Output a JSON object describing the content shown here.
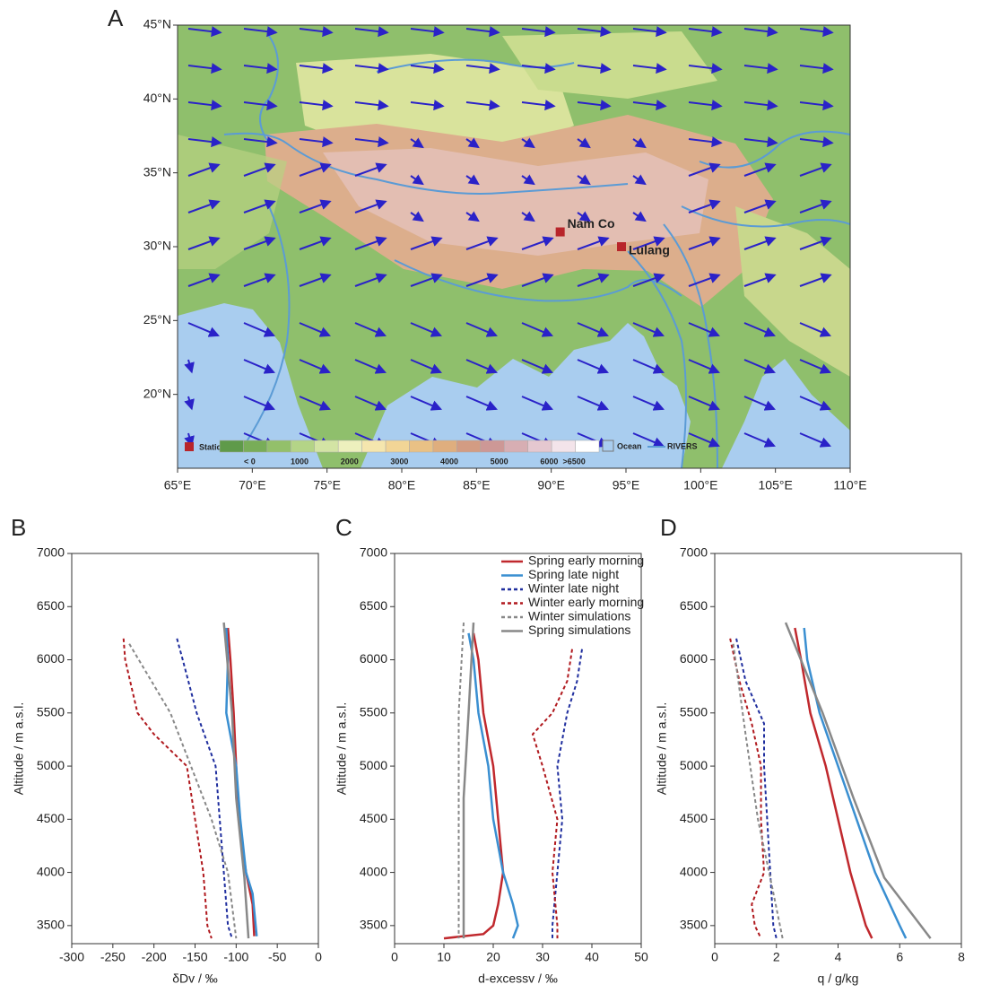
{
  "chart_data": [
    {
      "type": "map",
      "panel": "A",
      "xlim": [
        65,
        110
      ],
      "ylim": [
        15,
        45
      ],
      "xticks": [
        {
          "value": 65,
          "label": "65°E"
        },
        {
          "value": 70,
          "label": "70°E"
        },
        {
          "value": 75,
          "label": "75°E"
        },
        {
          "value": 80,
          "label": "80°E"
        },
        {
          "value": 85,
          "label": "85°E"
        },
        {
          "value": 90,
          "label": "90°E"
        },
        {
          "value": 95,
          "label": "95°E"
        },
        {
          "value": 100,
          "label": "100°E"
        },
        {
          "value": 105,
          "label": "105°E"
        },
        {
          "value": 110,
          "label": "110°E"
        }
      ],
      "yticks": [
        {
          "value": 20,
          "label": "20°N"
        },
        {
          "value": 25,
          "label": "25°N"
        },
        {
          "value": 30,
          "label": "30°N"
        },
        {
          "value": 35,
          "label": "35°N"
        },
        {
          "value": 40,
          "label": "40°N"
        },
        {
          "value": 45,
          "label": "45°N"
        }
      ],
      "stations": [
        {
          "name": "Nam Co",
          "lon": 90.6,
          "lat": 31.0
        },
        {
          "name": "Lulang",
          "lon": 94.7,
          "lat": 30.0
        }
      ],
      "station_color": "#b8252a",
      "legend": {
        "station": "Station",
        "ocean": "Ocean",
        "rivers": "RIVERS"
      },
      "colorbar": {
        "lim": [
          -600,
          7000
        ],
        "colors": [
          "#5f9a4a",
          "#78ad58",
          "#93c06a",
          "#b4d487",
          "#d3e4a4",
          "#edf0bd",
          "#f5e6ae",
          "#f2d596",
          "#e9c185",
          "#dfae7e",
          "#d39c83",
          "#cd9896",
          "#d7aeb3",
          "#e5c8d0",
          "#f3e4ea",
          "#ffffff"
        ],
        "ticks": [
          {
            "value": 0,
            "label": "< 0"
          },
          1000,
          2000,
          3000,
          4000,
          5000,
          6000,
          {
            "value": 6500,
            "label": ">6500"
          }
        ]
      }
    },
    {
      "type": "line",
      "panel": "B",
      "xlabel": "δDv / ‰",
      "ylabel": "Altitude / m a.s.l.",
      "xlim": [
        -300,
        0
      ],
      "ylim": [
        3330,
        7000
      ],
      "xticks": [
        -300,
        -250,
        -200,
        -150,
        -100,
        -50,
        0
      ],
      "yticks": [
        3500,
        4000,
        4500,
        5000,
        5500,
        6000,
        6500,
        7000
      ],
      "series": [
        {
          "color": "#c0282d",
          "dash": false,
          "y": [
            6300,
            6000,
            5500,
            5000,
            4500,
            4000,
            3700,
            3400
          ],
          "values": [
            -110,
            -107,
            -103,
            -100,
            -97,
            -88,
            -80,
            -78
          ]
        },
        {
          "color": "#3a8fd1",
          "dash": false,
          "y": [
            6300,
            6000,
            5500,
            5000,
            4500,
            4000,
            3800,
            3400
          ],
          "values": [
            -112,
            -110,
            -112,
            -100,
            -95,
            -88,
            -80,
            -75
          ]
        },
        {
          "color": "#1f2e9e",
          "dash": true,
          "y": [
            6200,
            6000,
            5500,
            5000,
            4500,
            4000,
            3500,
            3380
          ],
          "values": [
            -172,
            -165,
            -148,
            -125,
            -120,
            -115,
            -110,
            -105
          ]
        },
        {
          "color": "#b0191e",
          "dash": true,
          "y": [
            6200,
            6000,
            5500,
            5300,
            5000,
            4500,
            4000,
            3500,
            3380
          ],
          "values": [
            -237,
            -235,
            -220,
            -200,
            -160,
            -150,
            -140,
            -135,
            -130
          ]
        },
        {
          "color": "#888888",
          "dash": true,
          "y": [
            6150,
            5500,
            5000,
            4500,
            4000,
            3380
          ],
          "values": [
            -230,
            -180,
            -155,
            -130,
            -110,
            -100
          ]
        },
        {
          "color": "#888888",
          "dash": false,
          "y": [
            6350,
            5500,
            4700,
            3950,
            3380
          ],
          "values": [
            -115,
            -105,
            -100,
            -90,
            -85
          ]
        }
      ]
    },
    {
      "type": "line",
      "panel": "C",
      "xlabel": "d-excessv / ‰",
      "ylabel": "Altitude / m a.s.l.",
      "xlim": [
        0,
        50
      ],
      "ylim": [
        3330,
        7000
      ],
      "xticks": [
        0,
        10,
        20,
        30,
        40,
        50
      ],
      "yticks": [
        3500,
        4000,
        4500,
        5000,
        5500,
        6000,
        6500,
        7000
      ],
      "legend": "upper right",
      "series": [
        {
          "name": "Spring early morning",
          "color": "#c0282d",
          "dash": false,
          "y": [
            6250,
            6000,
            5500,
            5000,
            4500,
            4000,
            3700,
            3500,
            3420,
            3380
          ],
          "values": [
            16,
            17,
            18,
            20,
            21,
            22,
            21,
            20,
            18,
            10
          ]
        },
        {
          "name": "Spring late night",
          "color": "#3a8fd1",
          "dash": false,
          "y": [
            6250,
            6000,
            5500,
            5000,
            4500,
            4000,
            3700,
            3500,
            3380
          ],
          "values": [
            15,
            16,
            17,
            19,
            20,
            22,
            24,
            25,
            24
          ]
        },
        {
          "name": "Winter late night",
          "color": "#1f2e9e",
          "dash": true,
          "y": [
            6100,
            5800,
            5500,
            5000,
            4500,
            4000,
            3500,
            3380
          ],
          "values": [
            38,
            37,
            35,
            33,
            34,
            33,
            32,
            32
          ]
        },
        {
          "name": "Winter early morning",
          "color": "#b0191e",
          "dash": true,
          "y": [
            6100,
            5800,
            5500,
            5300,
            5000,
            4500,
            4000,
            3500,
            3380
          ],
          "values": [
            36,
            35,
            32,
            28,
            30,
            33,
            32,
            33,
            33
          ]
        },
        {
          "name": "Winter simulations",
          "color": "#888888",
          "dash": true,
          "y": [
            6350,
            5500,
            4800,
            4000,
            3380
          ],
          "values": [
            14,
            13,
            13,
            13,
            13
          ]
        },
        {
          "name": "Spring simulations",
          "color": "#888888",
          "dash": false,
          "y": [
            6350,
            5500,
            4700,
            3950,
            3380
          ],
          "values": [
            16,
            15,
            14,
            14,
            14
          ]
        }
      ]
    },
    {
      "type": "line",
      "panel": "D",
      "xlabel": "q / g/kg",
      "ylabel": "Altitude / m a.s.l.",
      "xlim": [
        0,
        8
      ],
      "ylim": [
        3330,
        7000
      ],
      "xticks": [
        0,
        2,
        4,
        6,
        8
      ],
      "yticks": [
        3500,
        4000,
        4500,
        5000,
        5500,
        6000,
        6500,
        7000
      ],
      "series": [
        {
          "color": "#c0282d",
          "dash": false,
          "y": [
            6300,
            6000,
            5500,
            5000,
            4500,
            4000,
            3500,
            3380
          ],
          "values": [
            2.6,
            2.8,
            3.1,
            3.6,
            4.0,
            4.4,
            4.9,
            5.1
          ]
        },
        {
          "color": "#3a8fd1",
          "dash": false,
          "y": [
            6300,
            6000,
            5500,
            5000,
            4500,
            4000,
            3500,
            3380
          ],
          "values": [
            2.9,
            3.0,
            3.4,
            4.0,
            4.6,
            5.2,
            6.0,
            6.2
          ]
        },
        {
          "color": "#1f2e9e",
          "dash": true,
          "y": [
            6200,
            5800,
            5400,
            5000,
            4500,
            4000,
            3500,
            3380
          ],
          "values": [
            0.7,
            1.0,
            1.6,
            1.6,
            1.7,
            1.8,
            1.9,
            2.0
          ]
        },
        {
          "color": "#b0191e",
          "dash": true,
          "y": [
            6200,
            5800,
            5400,
            5000,
            4500,
            4000,
            3700,
            3500,
            3380
          ],
          "values": [
            0.5,
            0.8,
            1.2,
            1.5,
            1.5,
            1.6,
            1.2,
            1.3,
            1.5
          ]
        },
        {
          "color": "#888888",
          "dash": true,
          "y": [
            6150,
            5300,
            4500,
            3950,
            3380
          ],
          "values": [
            0.6,
            1.0,
            1.4,
            1.8,
            2.2
          ]
        },
        {
          "color": "#888888",
          "dash": false,
          "y": [
            6350,
            5500,
            4700,
            3950,
            3380
          ],
          "values": [
            2.3,
            3.5,
            4.5,
            5.5,
            7.0
          ]
        }
      ]
    }
  ]
}
